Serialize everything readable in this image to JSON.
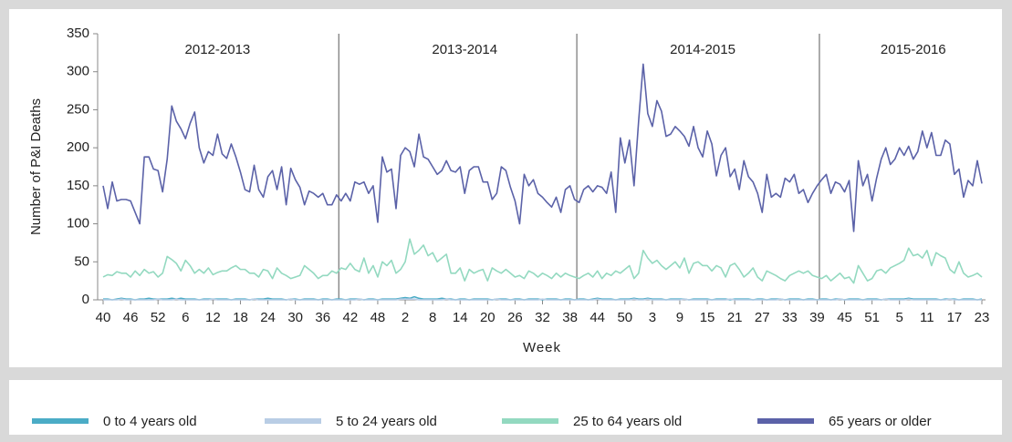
{
  "chart_data": {
    "type": "line",
    "y_label": "Number of P&I Deaths",
    "x_label": "Week",
    "annotations": [
      "2012-2013",
      "2013-2014",
      "2014-2015",
      "2015-2016"
    ],
    "legend": "bottom",
    "ylim": [
      0,
      350
    ],
    "yticks": [
      0,
      50,
      100,
      150,
      200,
      250,
      300,
      350
    ],
    "categories": [
      "40",
      null,
      null,
      null,
      null,
      null,
      "46",
      null,
      null,
      null,
      null,
      null,
      "52",
      null,
      null,
      null,
      null,
      null,
      "6",
      null,
      null,
      null,
      null,
      null,
      "12",
      null,
      null,
      null,
      null,
      null,
      "18",
      null,
      null,
      null,
      null,
      null,
      "24",
      null,
      null,
      null,
      null,
      null,
      "30",
      null,
      null,
      null,
      null,
      null,
      "36",
      null,
      null,
      null,
      null,
      null,
      "42",
      null,
      null,
      null,
      null,
      null,
      "48",
      null,
      null,
      null,
      null,
      null,
      "2",
      null,
      null,
      null,
      null,
      null,
      "8",
      null,
      null,
      null,
      null,
      null,
      "14",
      null,
      null,
      null,
      null,
      null,
      "20",
      null,
      null,
      null,
      null,
      null,
      "26",
      null,
      null,
      null,
      null,
      null,
      "32",
      null,
      null,
      null,
      null,
      null,
      "38",
      null,
      null,
      null,
      null,
      null,
      "44",
      null,
      null,
      null,
      null,
      null,
      "50",
      null,
      null,
      null,
      null,
      null,
      "3",
      null,
      null,
      null,
      null,
      null,
      "9",
      null,
      null,
      null,
      null,
      null,
      "15",
      null,
      null,
      null,
      null,
      null,
      "21",
      null,
      null,
      null,
      null,
      null,
      "27",
      null,
      null,
      null,
      null,
      null,
      "33",
      null,
      null,
      null,
      null,
      null,
      "39",
      null,
      null,
      null,
      null,
      null,
      "45",
      null,
      null,
      null,
      null,
      null,
      "51",
      null,
      null,
      null,
      null,
      null,
      "5",
      null,
      null,
      null,
      null,
      null,
      "11",
      null,
      null,
      null,
      null,
      null,
      "17",
      null,
      null,
      null,
      null,
      null,
      "23"
    ],
    "series": [
      {
        "name": "0 to 4 years old",
        "color": "#4bacc6",
        "values": [
          1,
          1,
          0,
          1,
          2,
          1,
          1,
          0,
          1,
          1,
          2,
          1,
          1,
          1,
          1,
          2,
          1,
          2,
          1,
          1,
          1,
          0,
          1,
          1,
          1,
          1,
          1,
          1,
          0,
          1,
          1,
          1,
          0,
          1,
          1,
          1,
          2,
          1,
          1,
          1,
          0,
          1,
          1,
          0,
          1,
          1,
          1,
          0,
          1,
          1,
          0,
          1,
          1,
          0,
          1,
          1,
          1,
          0,
          1,
          1,
          0,
          1,
          1,
          1,
          1,
          2,
          3,
          2,
          4,
          2,
          1,
          1,
          1,
          1,
          2,
          1,
          1,
          0,
          1,
          1,
          0,
          1,
          1,
          1,
          1,
          0,
          1,
          1,
          1,
          0,
          1,
          1,
          0,
          1,
          1,
          1,
          0,
          1,
          1,
          1,
          0,
          1,
          1,
          0,
          1,
          1,
          0,
          1,
          2,
          1,
          1,
          1,
          0,
          1,
          1,
          1,
          2,
          1,
          1,
          2,
          1,
          1,
          1,
          0,
          1,
          1,
          1,
          1,
          0,
          1,
          1,
          1,
          1,
          0,
          1,
          1,
          1,
          0,
          1,
          1,
          1,
          1,
          0,
          1,
          1,
          0,
          1,
          1,
          1,
          0,
          1,
          1,
          1,
          0,
          1,
          1,
          0,
          1,
          1,
          0,
          1,
          1,
          0,
          1,
          1,
          1,
          0,
          1,
          1,
          1,
          0,
          1,
          1,
          1,
          1,
          1,
          2,
          1,
          1,
          1,
          1,
          1,
          1,
          0,
          1,
          1,
          1,
          0,
          1,
          1,
          1,
          0,
          1
        ]
      },
      {
        "name": "5 to 24 years old",
        "color": "#b9cde5",
        "values": [
          0,
          0,
          0,
          0,
          1,
          0,
          0,
          0,
          0,
          0,
          0,
          0,
          1,
          0,
          0,
          0,
          1,
          0,
          0,
          0,
          0,
          0,
          0,
          0,
          1,
          0,
          0,
          0,
          0,
          0,
          0,
          0,
          0,
          1,
          0,
          0,
          0,
          0,
          0,
          0,
          0,
          1,
          0,
          0,
          0,
          0,
          0,
          0,
          0,
          0,
          0,
          0,
          0,
          0,
          0,
          0,
          1,
          0,
          0,
          0,
          0,
          0,
          0,
          0,
          0,
          1,
          1,
          1,
          1,
          0,
          0,
          0,
          0,
          0,
          0,
          1,
          0,
          0,
          0,
          0,
          0,
          0,
          0,
          0,
          0,
          0,
          1,
          0,
          0,
          0,
          0,
          0,
          0,
          0,
          0,
          0,
          1,
          0,
          0,
          0,
          0,
          0,
          0,
          0,
          0,
          0,
          0,
          0,
          1,
          0,
          0,
          0,
          0,
          0,
          0,
          0,
          1,
          0,
          0,
          1,
          0,
          0,
          0,
          0,
          0,
          0,
          0,
          1,
          0,
          0,
          0,
          0,
          0,
          0,
          0,
          0,
          0,
          1,
          0,
          0,
          0,
          0,
          0,
          0,
          0,
          0,
          0,
          0,
          1,
          0,
          0,
          0,
          0,
          0,
          0,
          0,
          0,
          0,
          0,
          0,
          0,
          1,
          0,
          0,
          0,
          0,
          0,
          0,
          0,
          0,
          0,
          1,
          0,
          0,
          0,
          0,
          1,
          0,
          0,
          0,
          0,
          0,
          0,
          0,
          0,
          1,
          0,
          0,
          0,
          0,
          0,
          0,
          0
        ]
      },
      {
        "name": "25 to 64 years old",
        "color": "#93d9c0",
        "values": [
          30,
          33,
          32,
          37,
          35,
          35,
          30,
          38,
          32,
          40,
          35,
          37,
          30,
          35,
          57,
          53,
          48,
          38,
          52,
          45,
          35,
          40,
          35,
          42,
          33,
          36,
          38,
          38,
          42,
          45,
          40,
          40,
          35,
          35,
          30,
          40,
          38,
          28,
          42,
          35,
          32,
          28,
          30,
          32,
          45,
          40,
          35,
          28,
          32,
          32,
          38,
          35,
          42,
          40,
          48,
          40,
          37,
          55,
          35,
          45,
          30,
          50,
          45,
          52,
          35,
          40,
          50,
          80,
          60,
          65,
          72,
          58,
          62,
          50,
          55,
          60,
          35,
          35,
          42,
          25,
          40,
          35,
          38,
          40,
          25,
          42,
          38,
          35,
          40,
          35,
          30,
          32,
          28,
          38,
          35,
          30,
          35,
          32,
          28,
          35,
          30,
          35,
          32,
          30,
          28,
          32,
          35,
          30,
          38,
          28,
          35,
          32,
          38,
          35,
          40,
          45,
          28,
          35,
          65,
          55,
          48,
          52,
          45,
          40,
          45,
          50,
          42,
          55,
          35,
          48,
          50,
          45,
          45,
          38,
          45,
          42,
          30,
          45,
          48,
          40,
          30,
          35,
          42,
          30,
          25,
          38,
          35,
          32,
          28,
          25,
          32,
          35,
          38,
          35,
          38,
          32,
          30,
          28,
          32,
          25,
          30,
          35,
          28,
          30,
          22,
          45,
          35,
          25,
          28,
          38,
          40,
          35,
          42,
          45,
          48,
          52,
          68,
          58,
          60,
          55,
          65,
          45,
          62,
          58,
          55,
          40,
          35,
          50,
          35,
          30,
          32,
          35,
          30
        ]
      },
      {
        "name": "65 years or older",
        "color": "#5b62a8",
        "values": [
          150,
          120,
          155,
          130,
          132,
          132,
          130,
          115,
          100,
          188,
          188,
          172,
          170,
          142,
          185,
          255,
          235,
          225,
          212,
          232,
          247,
          200,
          180,
          195,
          190,
          218,
          192,
          186,
          205,
          188,
          168,
          145,
          142,
          177,
          145,
          135,
          162,
          170,
          145,
          175,
          125,
          173,
          158,
          148,
          125,
          143,
          140,
          135,
          140,
          125,
          125,
          138,
          130,
          140,
          130,
          155,
          152,
          155,
          140,
          150,
          102,
          188,
          168,
          172,
          120,
          190,
          200,
          195,
          175,
          218,
          188,
          185,
          175,
          165,
          170,
          183,
          170,
          168,
          175,
          140,
          170,
          175,
          175,
          155,
          155,
          132,
          140,
          175,
          170,
          148,
          130,
          100,
          165,
          150,
          158,
          140,
          135,
          128,
          122,
          135,
          115,
          145,
          150,
          132,
          128,
          145,
          150,
          142,
          150,
          148,
          140,
          168,
          115,
          213,
          180,
          210,
          150,
          235,
          310,
          245,
          228,
          262,
          248,
          215,
          218,
          228,
          222,
          215,
          202,
          228,
          200,
          188,
          222,
          205,
          163,
          190,
          200,
          162,
          172,
          145,
          183,
          162,
          155,
          140,
          115,
          165,
          135,
          140,
          135,
          160,
          155,
          165,
          140,
          145,
          128,
          140,
          150,
          158,
          165,
          140,
          155,
          152,
          142,
          157,
          90,
          183,
          150,
          165,
          130,
          160,
          185,
          200,
          178,
          185,
          200,
          190,
          202,
          185,
          195,
          222,
          200,
          220,
          190,
          190,
          210,
          205,
          165,
          172,
          135,
          157,
          150,
          183,
          153
        ]
      }
    ]
  }
}
